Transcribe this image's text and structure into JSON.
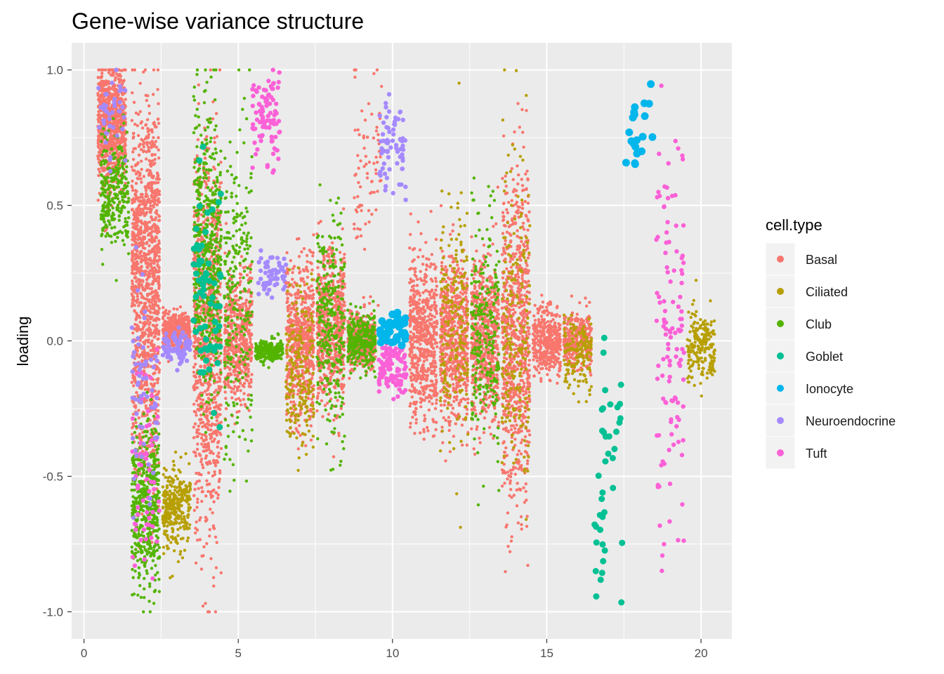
{
  "chart_data": {
    "type": "scatter",
    "title": "Gene-wise variance structure",
    "xlabel": "",
    "ylabel": "loading",
    "xlim": [
      -0.4,
      21.0
    ],
    "ylim": [
      -1.1,
      1.1
    ],
    "x_ticks": [
      0,
      5,
      10,
      15,
      20
    ],
    "y_ticks": [
      -1.0,
      -0.5,
      0.0,
      0.5,
      1.0
    ],
    "y_tick_labels": [
      "-1.0",
      "-0.5",
      "0.0",
      "0.5",
      "1.0"
    ],
    "grid": true,
    "legend_position": "right",
    "legend_title": "cell.type",
    "series": [
      {
        "name": "Basal",
        "color": "#F8766D"
      },
      {
        "name": "Ciliated",
        "color": "#B79F00"
      },
      {
        "name": "Club",
        "color": "#53B400"
      },
      {
        "name": "Goblet",
        "color": "#00C094"
      },
      {
        "name": "Ionocyte",
        "color": "#00B6EB"
      },
      {
        "name": "Neuroendocrine",
        "color": "#A58AFF"
      },
      {
        "name": "Tuft",
        "color": "#FB61D7"
      }
    ],
    "clusters": [
      {
        "x": 1,
        "series": "Basal",
        "points": [
          [
            0.9,
            0.8,
            0.12,
            800
          ]
        ]
      },
      {
        "x": 1,
        "series": "Club",
        "points": [
          [
            1.0,
            0.55,
            0.1,
            300
          ]
        ]
      },
      {
        "x": 1,
        "series": "Neuroendocrine",
        "points": [
          [
            0.9,
            0.85,
            0.08,
            40
          ]
        ]
      },
      {
        "x": 2,
        "series": "Basal",
        "points": [
          [
            2.0,
            0.35,
            0.25,
            900
          ],
          [
            2.0,
            -0.2,
            0.2,
            300
          ]
        ]
      },
      {
        "x": 2,
        "series": "Club",
        "points": [
          [
            2.0,
            -0.6,
            0.15,
            500
          ]
        ]
      },
      {
        "x": 2,
        "series": "Tuft",
        "points": [
          [
            2.0,
            -0.5,
            0.2,
            60
          ]
        ]
      },
      {
        "x": 2,
        "series": "Neuroendocrine",
        "points": [
          [
            2.0,
            -0.2,
            0.2,
            60
          ]
        ]
      },
      {
        "x": 3,
        "series": "Basal",
        "points": [
          [
            3.0,
            0.04,
            0.03,
            400
          ]
        ]
      },
      {
        "x": 3,
        "series": "Ciliated",
        "points": [
          [
            3.0,
            -0.62,
            0.08,
            300
          ]
        ]
      },
      {
        "x": 3,
        "series": "Neuroendocrine",
        "points": [
          [
            3.0,
            -0.02,
            0.03,
            80
          ]
        ]
      },
      {
        "x": 4,
        "series": "Basal",
        "points": [
          [
            4.0,
            0.0,
            0.35,
            900
          ]
        ]
      },
      {
        "x": 4,
        "series": "Club",
        "points": [
          [
            4.0,
            0.35,
            0.25,
            500
          ]
        ]
      },
      {
        "x": 4,
        "series": "Goblet",
        "points": [
          [
            4.0,
            0.2,
            0.2,
            60
          ]
        ]
      },
      {
        "x": 5,
        "series": "Basal",
        "points": [
          [
            5.0,
            0.0,
            0.12,
            500
          ]
        ]
      },
      {
        "x": 5,
        "series": "Club",
        "points": [
          [
            5.0,
            0.2,
            0.3,
            250
          ]
        ]
      },
      {
        "x": 6,
        "series": "Tuft",
        "points": [
          [
            5.9,
            0.82,
            0.1,
            90
          ]
        ]
      },
      {
        "x": 6,
        "series": "Neuroendocrine",
        "points": [
          [
            6.1,
            0.24,
            0.04,
            60
          ]
        ]
      },
      {
        "x": 6,
        "series": "Club",
        "points": [
          [
            6.0,
            -0.04,
            0.02,
            200
          ]
        ]
      },
      {
        "x": 7,
        "series": "Basal",
        "points": [
          [
            7.0,
            0.0,
            0.15,
            600
          ]
        ]
      },
      {
        "x": 7,
        "series": "Ciliated",
        "points": [
          [
            7.0,
            -0.1,
            0.15,
            200
          ]
        ]
      },
      {
        "x": 8,
        "series": "Basal",
        "points": [
          [
            8.0,
            0.05,
            0.15,
            600
          ]
        ]
      },
      {
        "x": 8,
        "series": "Club",
        "points": [
          [
            8.0,
            0.05,
            0.2,
            300
          ]
        ]
      },
      {
        "x": 9,
        "series": "Basal",
        "points": [
          [
            9.0,
            0.0,
            0.05,
            400
          ],
          [
            9.2,
            0.65,
            0.2,
            80
          ]
        ]
      },
      {
        "x": 9,
        "series": "Club",
        "points": [
          [
            9.0,
            0.0,
            0.05,
            300
          ]
        ]
      },
      {
        "x": 10,
        "series": "Neuroendocrine",
        "points": [
          [
            10.0,
            0.72,
            0.08,
            70
          ]
        ]
      },
      {
        "x": 10,
        "series": "Tuft",
        "points": [
          [
            10.0,
            -0.1,
            0.05,
            120
          ]
        ]
      },
      {
        "x": 10,
        "series": "Ionocyte",
        "points": [
          [
            10.0,
            0.05,
            0.03,
            40
          ]
        ]
      },
      {
        "x": 11,
        "series": "Basal",
        "points": [
          [
            11.0,
            0.0,
            0.15,
            600
          ]
        ]
      },
      {
        "x": 12,
        "series": "Basal",
        "points": [
          [
            12.0,
            0.0,
            0.15,
            600
          ]
        ]
      },
      {
        "x": 12,
        "series": "Ciliated",
        "points": [
          [
            12.0,
            0.05,
            0.25,
            200
          ]
        ]
      },
      {
        "x": 13,
        "series": "Basal",
        "points": [
          [
            13.0,
            0.0,
            0.15,
            600
          ]
        ]
      },
      {
        "x": 13,
        "series": "Club",
        "points": [
          [
            13.0,
            0.05,
            0.2,
            250
          ]
        ]
      },
      {
        "x": 14,
        "series": "Basal",
        "points": [
          [
            14.0,
            0.0,
            0.3,
            800
          ]
        ]
      },
      {
        "x": 14,
        "series": "Ciliated",
        "points": [
          [
            14.0,
            0.0,
            0.3,
            200
          ]
        ]
      },
      {
        "x": 15,
        "series": "Basal",
        "points": [
          [
            15.0,
            0.0,
            0.06,
            400
          ]
        ]
      },
      {
        "x": 16,
        "series": "Basal",
        "points": [
          [
            16.0,
            0.0,
            0.05,
            300
          ]
        ]
      },
      {
        "x": 16,
        "series": "Ciliated",
        "points": [
          [
            16.0,
            -0.05,
            0.07,
            150
          ]
        ]
      },
      {
        "x": 17,
        "series": "Goblet",
        "points": [
          [
            17.0,
            -0.5,
            0.25,
            40
          ]
        ]
      },
      {
        "x": 18,
        "series": "Ionocyte",
        "points": [
          [
            18.0,
            0.78,
            0.08,
            20
          ]
        ]
      },
      {
        "x": 19,
        "series": "Tuft",
        "points": [
          [
            19.0,
            0.0,
            0.35,
            120
          ]
        ]
      },
      {
        "x": 20,
        "series": "Ciliated",
        "points": [
          [
            20.0,
            -0.02,
            0.07,
            200
          ]
        ]
      }
    ]
  }
}
